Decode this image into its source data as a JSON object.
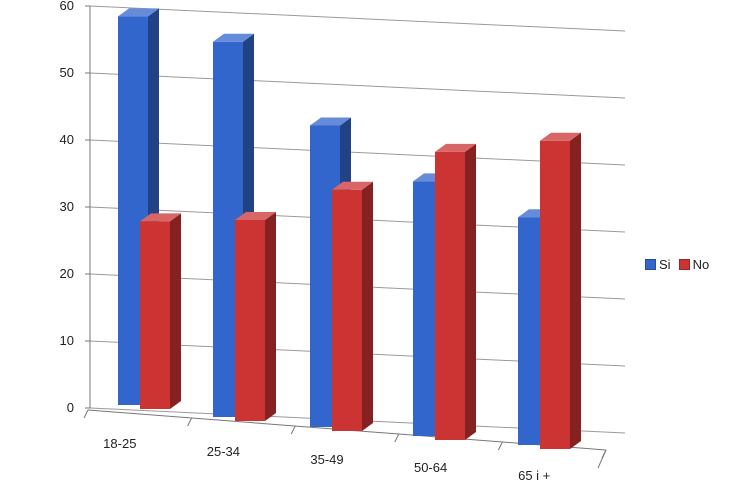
{
  "chart_data": {
    "type": "bar",
    "title": "",
    "xlabel": "",
    "ylabel": "",
    "categories": [
      "18-25",
      "25-34",
      "35-49",
      "50-64",
      "65 i +"
    ],
    "series": [
      {
        "name": "Si",
        "values": [
          58,
          56,
          45,
          38,
          34
        ],
        "color": "#3366cc"
      },
      {
        "name": "No",
        "values": [
          28,
          30,
          36,
          43,
          46
        ],
        "color": "#cc3333"
      }
    ],
    "ylim": [
      0,
      60
    ],
    "yticks": [
      0,
      10,
      20,
      30,
      40,
      50,
      60
    ],
    "grid": true,
    "style": "3d-clustered-column",
    "legend_position": "right"
  }
}
